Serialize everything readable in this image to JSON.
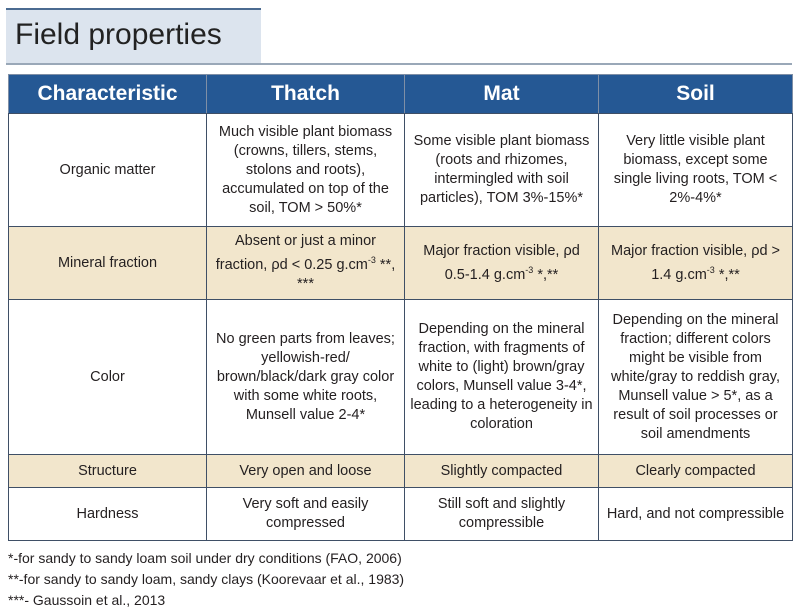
{
  "title": "Field properties",
  "table": {
    "headers": [
      "Characteristic",
      "Thatch",
      "Mat",
      "Soil"
    ],
    "rows": [
      {
        "characteristic": "Organic matter",
        "thatch": "Much visible plant biomass (crowns, tillers, stems, stolons and roots), accumulated on top of the soil, TOM > 50%*",
        "mat": "Some visible plant biomass (roots and rhizomes, intermingled with soil particles), TOM 3%-15%*",
        "soil": "Very little visible plant biomass, except some single living roots, TOM < 2%-4%*"
      },
      {
        "characteristic": "Mineral fraction",
        "thatch_text": "Absent or just a minor fraction, ρd < 0.25 g.cm",
        "thatch_sup": "-3",
        "thatch_note": " **, ***",
        "mat_text": "Major fraction visible, ρd 0.5-1.4 g.cm",
        "mat_sup": "-3",
        "mat_note": " *,**",
        "soil_text": "Major fraction visible, ρd > 1.4 g.cm",
        "soil_sup": "-3",
        "soil_note": " *,**"
      },
      {
        "characteristic": "Color",
        "thatch": "No green parts from leaves; yellowish-red/ brown/black/dark gray color with some white roots, Munsell value 2-4*",
        "mat": "Depending on the mineral fraction, with fragments of white to (light) brown/gray colors, Munsell value 3-4*, leading to a heterogeneity in coloration",
        "soil": "Depending on the mineral fraction; different colors might be visible from white/gray to reddish gray, Munsell value > 5*, as a result of soil processes or soil amendments"
      },
      {
        "characteristic": "Structure",
        "thatch": "Very open and loose",
        "mat": "Slightly compacted",
        "soil": "Clearly compacted"
      },
      {
        "characteristic": "Hardness",
        "thatch": "Very soft and easily compressed",
        "mat": "Still soft and slightly compressible",
        "soil": "Hard, and not compressible"
      }
    ]
  },
  "footnotes": [
    "*-for sandy to sandy loam soil under dry conditions (FAO, 2006)",
    "**-for sandy to sandy loam, sandy clays (Koorevaar et al., 1983)",
    "***- Gaussoin et al., 2013"
  ],
  "colors": {
    "header_bg": "#255894",
    "shaded_row_bg": "#f2e6cc",
    "title_bar_bg": "#dce4ee"
  }
}
